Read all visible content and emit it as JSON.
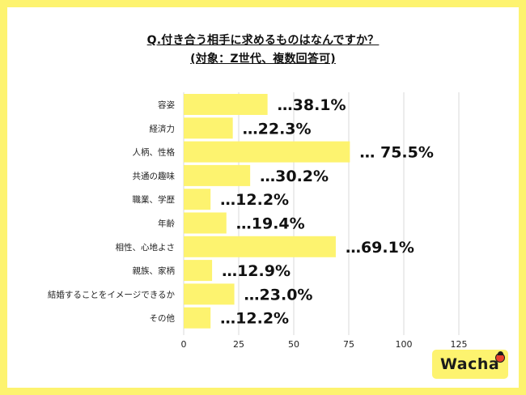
{
  "title_line1": "Q.付き合う相手に求めるものはなんですか？",
  "title_line2": "(対象：Z世代、複数回答可)",
  "logo_text": "Wacha",
  "colors": {
    "bar": "#fdf36f",
    "frame": "#fdf36f",
    "grid": "#d9d9d9",
    "text": "#111111",
    "logo_dot": "#e8412c"
  },
  "chart_data": {
    "type": "bar",
    "orientation": "horizontal",
    "categories": [
      "容姿",
      "経済力",
      "人柄、性格",
      "共通の趣味",
      "職業、学歴",
      "年齢",
      "相性、心地よさ",
      "親族、家柄",
      "結婚することをイメージできるか",
      "その他"
    ],
    "values": [
      38.1,
      22.3,
      75.5,
      30.2,
      12.2,
      19.4,
      69.1,
      12.9,
      23.0,
      12.2
    ],
    "value_labels": [
      "…38.1%",
      "…22.3%",
      "… 75.5%",
      "…30.2%",
      "…12.2%",
      "…19.4%",
      "…69.1%",
      "…12.9%",
      "…23.0%",
      "…12.2%"
    ],
    "xlim": [
      0,
      150
    ],
    "xticks": [
      0,
      25,
      50,
      75,
      100,
      125
    ],
    "grid": true,
    "xlabel": "",
    "ylabel": ""
  }
}
